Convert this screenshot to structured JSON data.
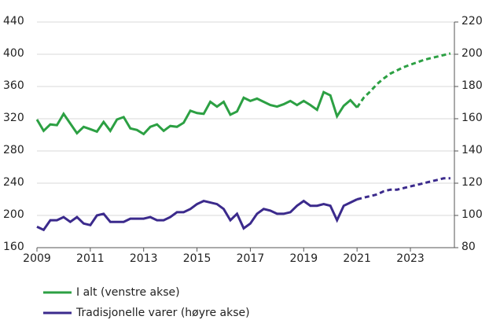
{
  "chart_data": {
    "type": "line",
    "x": [
      2009,
      2009.25,
      2009.5,
      2009.75,
      2010,
      2010.25,
      2010.5,
      2010.75,
      2011,
      2011.25,
      2011.5,
      2011.75,
      2012,
      2012.25,
      2012.5,
      2012.75,
      2013,
      2013.25,
      2013.5,
      2013.75,
      2014,
      2014.25,
      2014.5,
      2014.75,
      2015,
      2015.25,
      2015.5,
      2015.75,
      2016,
      2016.25,
      2016.5,
      2016.75,
      2017,
      2017.25,
      2017.5,
      2017.75,
      2018,
      2018.25,
      2018.5,
      2018.75,
      2019,
      2019.25,
      2019.5,
      2019.75,
      2020,
      2020.25,
      2020.5,
      2020.75,
      2021,
      2021.25,
      2021.5,
      2021.75,
      2022,
      2022.25,
      2022.5,
      2022.75,
      2023,
      2023.25,
      2023.5,
      2023.75,
      2024,
      2024.25,
      2024.5
    ],
    "forecast_from": 2021,
    "series": [
      {
        "name": "I alt (venstre akse)",
        "color": "#2ca043",
        "values": [
          319,
          305,
          313,
          312,
          326,
          314,
          302,
          310,
          307,
          304,
          316,
          305,
          319,
          322,
          308,
          306,
          301,
          310,
          313,
          305,
          311,
          310,
          315,
          330,
          327,
          326,
          341,
          335,
          341,
          325,
          329,
          346,
          342,
          345,
          341,
          337,
          335,
          338,
          342,
          337,
          342,
          337,
          331,
          353,
          349,
          323,
          336,
          343,
          334,
          346,
          354,
          363,
          370,
          376,
          380,
          384,
          387,
          390,
          393,
          395,
          397,
          399,
          401
        ]
      },
      {
        "name": "Tradisjonelle varer (høyre akse)",
        "color": "#3b2a8c",
        "axis": "y2",
        "values": [
          93,
          91,
          97,
          97,
          99,
          96,
          99,
          95,
          94,
          100,
          101,
          96,
          96,
          96,
          98,
          98,
          98,
          99,
          97,
          97,
          99,
          102,
          102,
          104,
          107,
          109,
          108,
          107,
          104,
          97,
          101,
          92,
          95,
          101,
          104,
          103,
          101,
          101,
          102,
          106,
          109,
          106,
          106,
          107,
          106,
          97,
          106,
          108,
          110,
          111,
          112,
          113,
          115,
          116,
          116,
          117,
          118,
          119,
          120,
          121,
          122,
          123,
          123
        ]
      }
    ],
    "xlim": [
      2009,
      2024.65
    ],
    "xticks": [
      2009,
      2011,
      2013,
      2015,
      2017,
      2019,
      2021,
      2023
    ],
    "ylim": [
      160,
      440
    ],
    "yticks": [
      160,
      200,
      240,
      280,
      320,
      360,
      400,
      440
    ],
    "y2lim": [
      80,
      220
    ],
    "y2ticks": [
      80,
      100,
      120,
      140,
      160,
      180,
      200,
      220
    ],
    "grid": true
  }
}
